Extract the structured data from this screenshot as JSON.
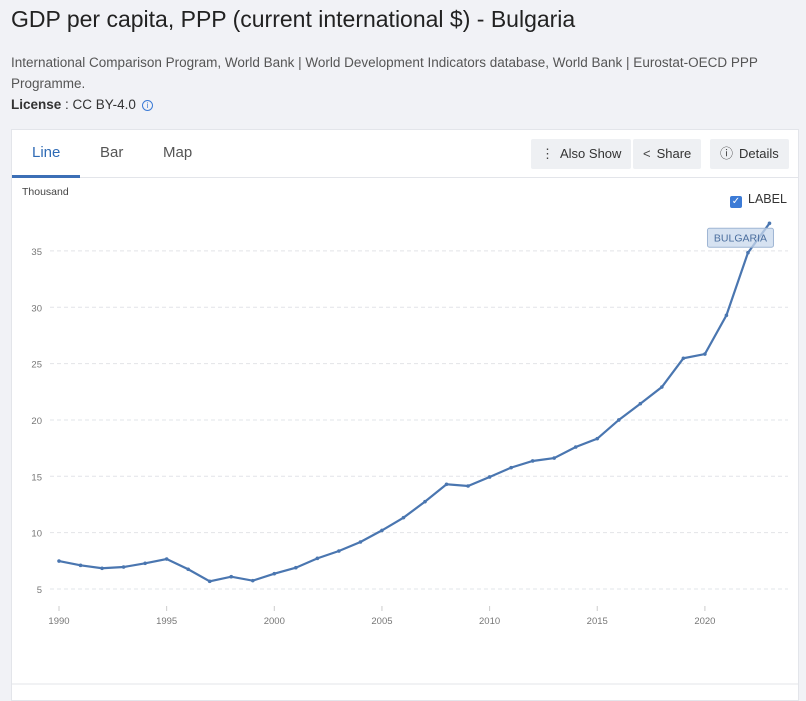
{
  "header": {
    "title": "GDP per capita, PPP (current international $) - Bulgaria",
    "source": "International Comparison Program, World Bank | World Development Indicators database, World Bank | Eurostat-OECD PPP Programme.",
    "license_label": "License",
    "license_value": ": CC BY-4.0",
    "info_icon": "i"
  },
  "tabs": [
    {
      "label": "Line"
    },
    {
      "label": "Bar"
    },
    {
      "label": "Map"
    }
  ],
  "buttons": {
    "also_show": "Also Show",
    "share": "Share",
    "details": "Details"
  },
  "legend": {
    "label_toggle": "LABEL",
    "checked": true
  },
  "colors": {
    "line": "#4a76b0",
    "accent": "#3c7bd6"
  },
  "chart_data": {
    "type": "line",
    "title": "",
    "xlabel": "",
    "ylabel": "Thousand",
    "x": [
      1990,
      1991,
      1992,
      1993,
      1994,
      1995,
      1996,
      1997,
      1998,
      1999,
      2000,
      2001,
      2002,
      2003,
      2004,
      2005,
      2006,
      2007,
      2008,
      2009,
      2010,
      2011,
      2012,
      2013,
      2014,
      2015,
      2016,
      2017,
      2018,
      2019,
      2020,
      2021,
      2022,
      2023
    ],
    "series": [
      {
        "name": "BULGARIA",
        "values": [
          7.48,
          7.1,
          6.84,
          6.95,
          7.28,
          7.66,
          6.75,
          5.68,
          6.09,
          5.74,
          6.36,
          6.89,
          7.72,
          8.37,
          9.17,
          10.2,
          11.33,
          12.75,
          14.29,
          14.14,
          14.94,
          15.77,
          16.36,
          16.62,
          17.6,
          18.34,
          20.0,
          21.44,
          22.92,
          25.47,
          25.85,
          29.29,
          34.84,
          37.45
        ]
      }
    ],
    "xticks": [
      "1990",
      "1995",
      "2000",
      "2005",
      "2010",
      "2015",
      "2020"
    ],
    "yticks": [
      "5",
      "10",
      "15",
      "20",
      "25",
      "30",
      "35"
    ],
    "xlim": [
      1990,
      2023
    ],
    "ylim": [
      5,
      35
    ],
    "grid": true
  }
}
